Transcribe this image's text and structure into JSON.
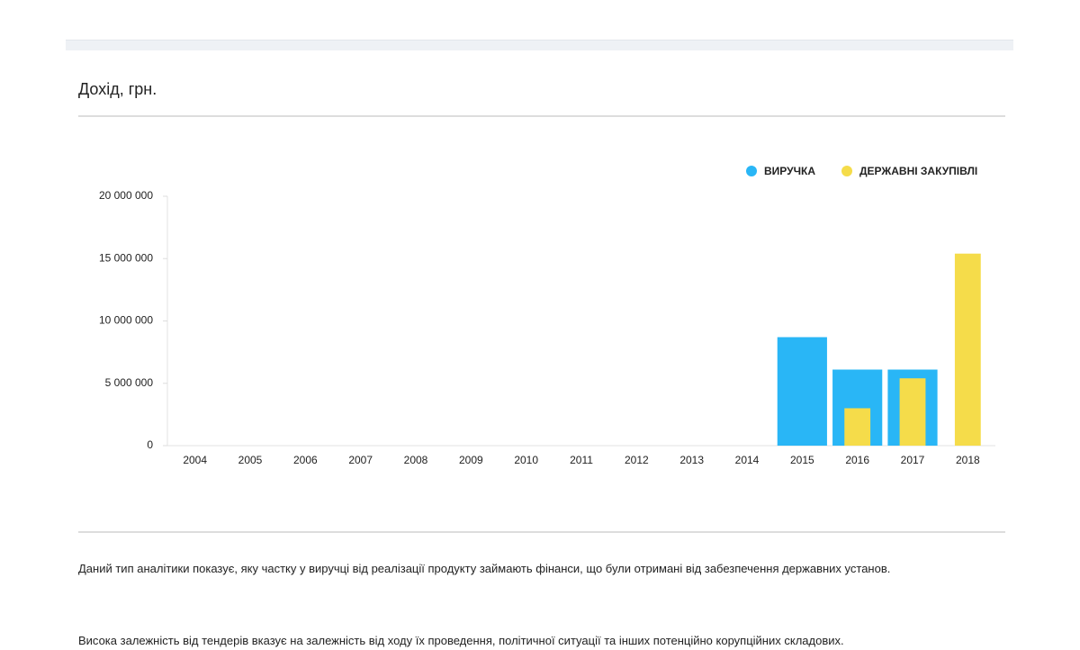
{
  "header": {
    "title": "Дохід, грн."
  },
  "chart_data": {
    "type": "bar",
    "categories": [
      "2004",
      "2005",
      "2006",
      "2007",
      "2008",
      "2009",
      "2010",
      "2011",
      "2012",
      "2013",
      "2014",
      "2015",
      "2016",
      "2017",
      "2018"
    ],
    "series": [
      {
        "name": "ВИРУЧКА",
        "color": "#29b6f6",
        "values": [
          null,
          null,
          null,
          null,
          null,
          null,
          null,
          null,
          null,
          null,
          null,
          8700000,
          6100000,
          6100000,
          null
        ]
      },
      {
        "name": "ДЕРЖАВНІ ЗАКУПІВЛІ",
        "color": "#f5dc4a",
        "values": [
          null,
          null,
          null,
          null,
          null,
          null,
          null,
          null,
          null,
          null,
          null,
          null,
          3000000,
          5400000,
          15400000
        ]
      }
    ],
    "ylim": [
      0,
      20000000
    ],
    "yticks": [
      0,
      {
        "value": 5000000,
        "label": "5 000 000"
      },
      {
        "value": 10000000,
        "label": "10 000 000"
      },
      {
        "value": 15000000,
        "label": "15 000 000"
      },
      {
        "value": 20000000,
        "label": "20 000 000"
      }
    ],
    "grid": false,
    "legend": "top-right"
  },
  "description": {
    "paragraphs": [
      "Даний тип аналітики показує, яку частку у виручці від реалізації продукту займають фінанси, що були отримані від забезпечення державних установ.",
      "Висока залежність від тендерів вказує на залежність від ходу їх проведення, політичної ситуації та інших потенційно корупційних складових."
    ]
  }
}
